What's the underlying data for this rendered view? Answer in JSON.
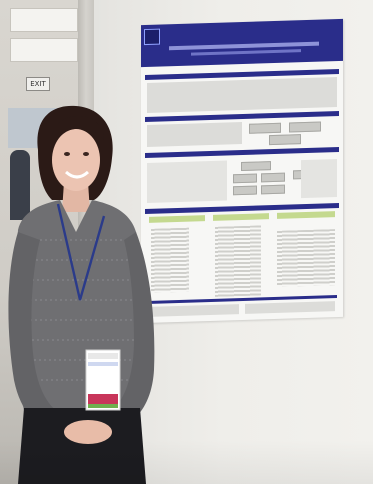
{
  "scene": {
    "exit_sign": "EXIT"
  }
}
